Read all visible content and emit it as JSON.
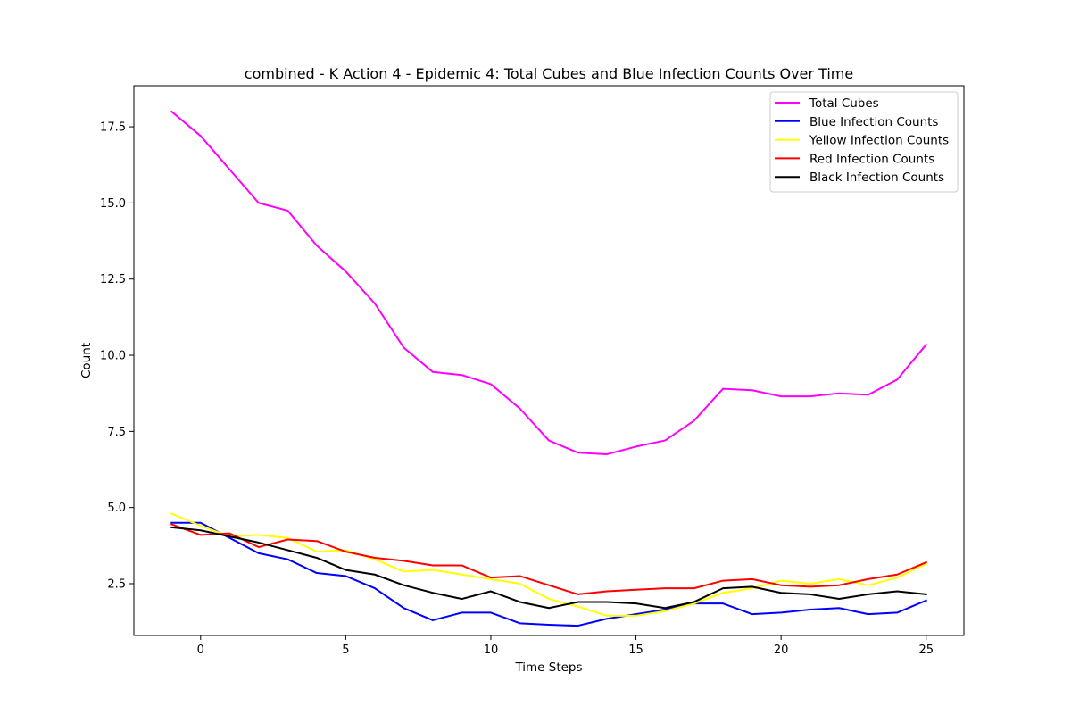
{
  "chart_data": {
    "type": "line",
    "title": "combined - K Action 4 - Epidemic 4: Total Cubes and Blue Infection Counts Over Time",
    "xlabel": "Time Steps",
    "ylabel": "Count",
    "xlim": [
      -2.3,
      26.3
    ],
    "ylim": [
      0.8,
      18.85
    ],
    "xticks": [
      0,
      5,
      10,
      15,
      20,
      25
    ],
    "yticks": [
      2.5,
      5.0,
      7.5,
      10.0,
      12.5,
      15.0,
      17.5
    ],
    "ytick_labels": [
      "2.5",
      "5.0",
      "7.5",
      "10.0",
      "12.5",
      "15.0",
      "17.5"
    ],
    "grid": false,
    "legend_position": "top-right",
    "x": [
      -1,
      0,
      1,
      2,
      3,
      4,
      5,
      6,
      7,
      8,
      9,
      10,
      11,
      12,
      13,
      14,
      15,
      16,
      17,
      18,
      19,
      20,
      21,
      22,
      23,
      24,
      25
    ],
    "series": [
      {
        "name": "Total Cubes",
        "color": "#ff00ff",
        "values": [
          18.0,
          17.2,
          16.1,
          15.0,
          14.75,
          13.6,
          12.75,
          11.7,
          10.25,
          9.45,
          9.35,
          9.05,
          8.25,
          7.2,
          6.8,
          6.75,
          7.0,
          7.2,
          7.85,
          8.9,
          8.85,
          8.65,
          8.65,
          8.75,
          8.7,
          9.2,
          10.35
        ]
      },
      {
        "name": "Blue Infection Counts",
        "color": "#0000ff",
        "values": [
          4.5,
          4.5,
          4.0,
          3.5,
          3.3,
          2.85,
          2.75,
          2.35,
          1.7,
          1.3,
          1.55,
          1.55,
          1.2,
          1.15,
          1.12,
          1.35,
          1.5,
          1.65,
          1.85,
          1.85,
          1.5,
          1.55,
          1.65,
          1.7,
          1.5,
          1.55,
          1.95
        ]
      },
      {
        "name": "Yellow Infection Counts",
        "color": "#ffff00",
        "values": [
          4.8,
          4.4,
          4.05,
          4.1,
          4.0,
          3.55,
          3.6,
          3.3,
          2.9,
          2.95,
          2.8,
          2.65,
          2.5,
          2.0,
          1.75,
          1.45,
          1.45,
          1.6,
          1.85,
          2.2,
          2.35,
          2.6,
          2.5,
          2.65,
          2.45,
          2.7,
          3.15
        ]
      },
      {
        "name": "Red Infection Counts",
        "color": "#ff0000",
        "values": [
          4.45,
          4.1,
          4.15,
          3.7,
          3.95,
          3.9,
          3.55,
          3.35,
          3.25,
          3.1,
          3.1,
          2.7,
          2.75,
          2.45,
          2.15,
          2.25,
          2.3,
          2.35,
          2.35,
          2.6,
          2.65,
          2.45,
          2.4,
          2.45,
          2.65,
          2.8,
          3.2
        ]
      },
      {
        "name": "Black Infection Counts",
        "color": "#000000",
        "values": [
          4.35,
          4.25,
          4.05,
          3.85,
          3.6,
          3.35,
          2.95,
          2.8,
          2.45,
          2.2,
          2.0,
          2.25,
          1.9,
          1.7,
          1.9,
          1.9,
          1.85,
          1.7,
          1.9,
          2.35,
          2.4,
          2.2,
          2.15,
          2.0,
          2.15,
          2.25,
          2.15
        ]
      }
    ]
  }
}
